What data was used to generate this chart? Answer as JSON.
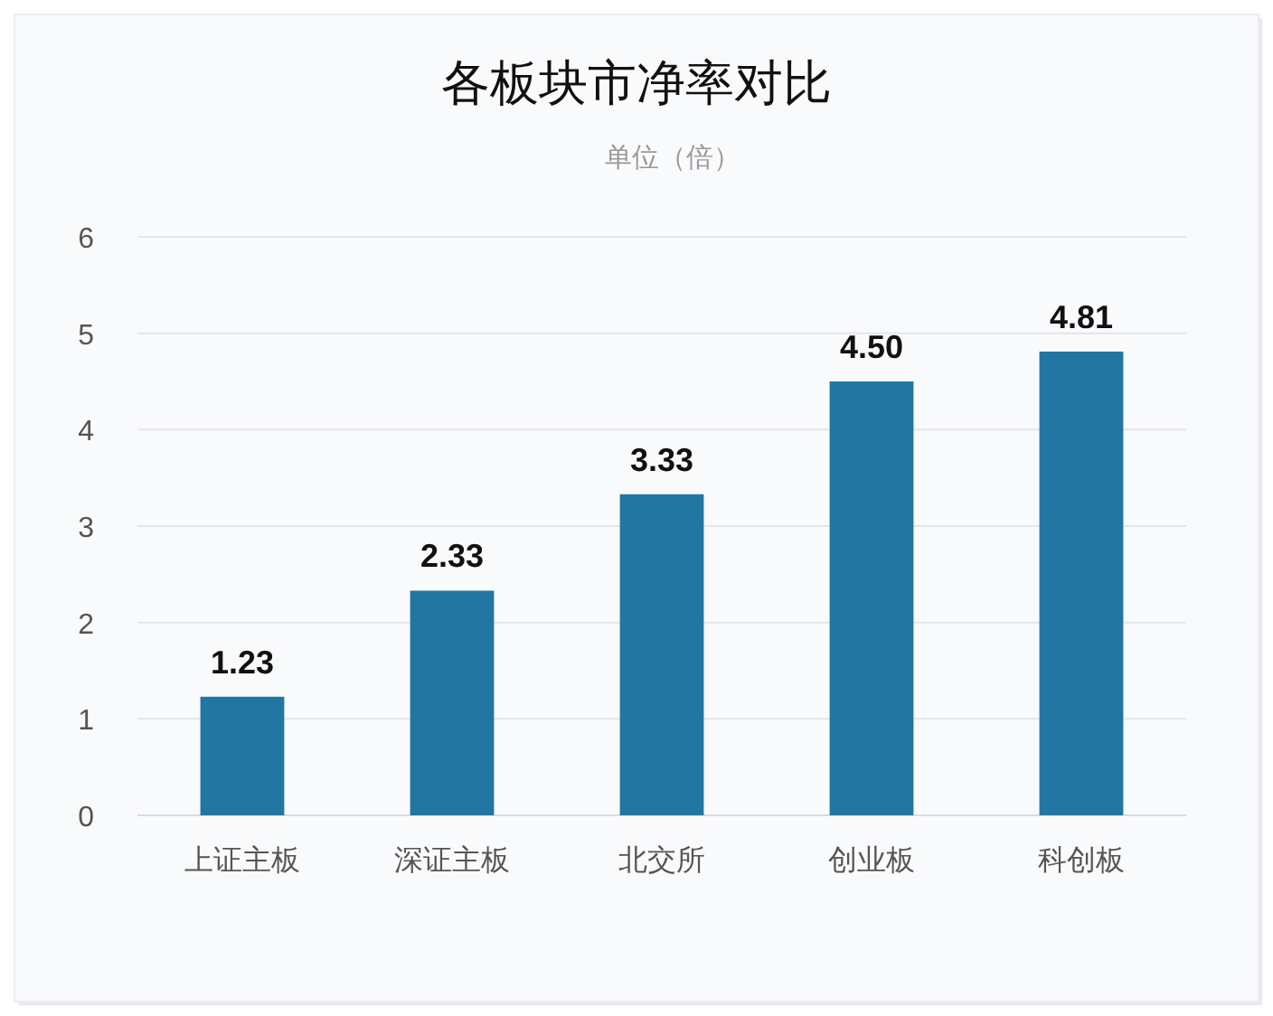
{
  "chart_data": {
    "type": "bar",
    "title": "各板块市净率对比",
    "subtitle": "单位（倍）",
    "categories": [
      "上证主板",
      "深证主板",
      "北交所",
      "创业板",
      "科创板"
    ],
    "values": [
      1.23,
      2.33,
      3.33,
      4.5,
      4.81
    ],
    "value_labels": [
      "1.23",
      "2.33",
      "3.33",
      "4.50",
      "4.81"
    ],
    "color": "#2276a2",
    "ylim": [
      0,
      6
    ],
    "yticks": [
      0,
      1,
      2,
      3,
      4,
      5,
      6
    ],
    "grid": "y"
  }
}
